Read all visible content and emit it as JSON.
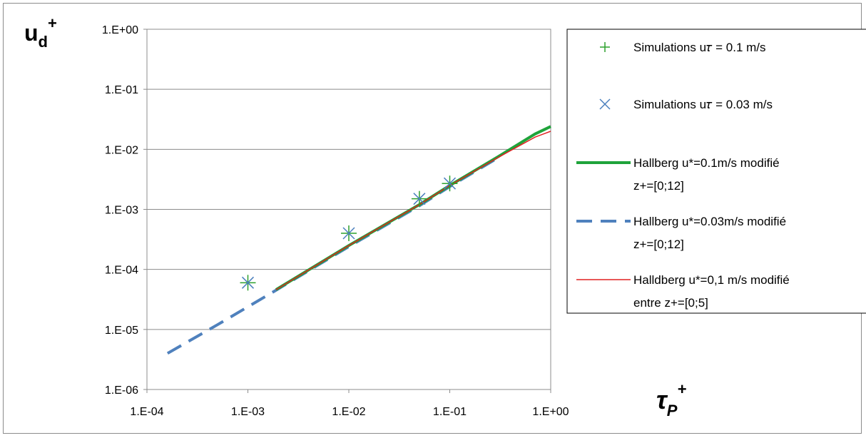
{
  "chart_data": {
    "type": "scatter",
    "x_scale": "log",
    "y_scale": "log",
    "xlim": [
      0.0001,
      1
    ],
    "ylim": [
      1e-06,
      1
    ],
    "x_ticks": [
      "1.E-04",
      "1.E-03",
      "1.E-02",
      "1.E-01",
      "1.E+00"
    ],
    "y_ticks": [
      "1.E+00",
      "1.E-01",
      "1.E-02",
      "1.E-03",
      "1.E-04",
      "1.E-05",
      "1.E-06"
    ],
    "ylabel_main": "u",
    "ylabel_sub": "d",
    "ylabel_sup": "+",
    "xlabel_main": "τ",
    "xlabel_sub": "P",
    "xlabel_sup": "+",
    "grid": "horizontal",
    "legend_position": "right",
    "series": [
      {
        "name": "Simulations u𝜏 = 0.1 m/s",
        "kind": "marker-plus",
        "color": "#2ca02c",
        "x": [
          0.001,
          0.01,
          0.05,
          0.1
        ],
        "y": [
          6e-05,
          0.0004,
          0.0015,
          0.0027
        ]
      },
      {
        "name": "Simulations u𝜏 = 0.03 m/s",
        "kind": "marker-x",
        "color": "#4a7fbd",
        "x": [
          0.001,
          0.01,
          0.05,
          0.1
        ],
        "y": [
          6e-05,
          0.0004,
          0.0015,
          0.0027
        ]
      },
      {
        "name_lines": [
          "Hallberg u*=0.1m/s modifié",
          "z+=[0;12]"
        ],
        "kind": "line-thick",
        "color": "#1fa33a",
        "x": [
          0.0019,
          0.01,
          0.05,
          0.1,
          0.3,
          0.7,
          1.0
        ],
        "y": [
          4.6e-05,
          0.00025,
          0.0012,
          0.0025,
          0.0075,
          0.018,
          0.024
        ]
      },
      {
        "name_lines": [
          "Hallberg u*=0.03m/s modifié",
          "z+=[0;12]"
        ],
        "kind": "line-dashed",
        "color": "#4f81bd",
        "x": [
          0.00016,
          0.0005,
          0.0019,
          0.01,
          0.05,
          0.1,
          0.3
        ],
        "y": [
          4e-06,
          1.2e-05,
          4.5e-05,
          0.00024,
          0.00115,
          0.0024,
          0.0072
        ]
      },
      {
        "name_lines": [
          "Halldberg u*=0,1 m/s modifié",
          "entre z+=[0;5]"
        ],
        "kind": "line-thin",
        "color": "#e02020",
        "x": [
          0.0019,
          0.01,
          0.05,
          0.1,
          0.3,
          0.7,
          1.0
        ],
        "y": [
          4.6e-05,
          0.00025,
          0.0012,
          0.0025,
          0.0073,
          0.016,
          0.02
        ]
      }
    ]
  }
}
